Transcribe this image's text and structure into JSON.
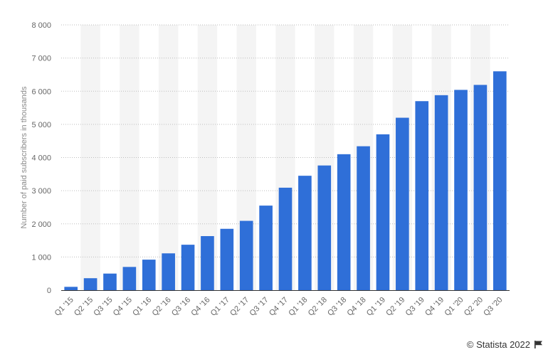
{
  "colors": {
    "bar": "#2f6fd8",
    "band": "#f4f4f4",
    "grid": "#bdbdbd",
    "axis": "#333333"
  },
  "credit": {
    "text": "© Statista 2022",
    "icon": "flag-icon"
  },
  "chart_data": {
    "type": "bar",
    "ylabel": "Number of paid subscribers in thousands",
    "ylim": [
      0,
      8000
    ],
    "yticks": [
      0,
      1000,
      2000,
      3000,
      4000,
      5000,
      6000,
      7000,
      8000
    ],
    "ytick_labels": [
      "0",
      "1 000",
      "2 000",
      "3 000",
      "4 000",
      "5 000",
      "6 000",
      "7 000",
      "8 000"
    ],
    "grid": true,
    "categories": [
      "Q1 '15",
      "Q2 '15",
      "Q3 '15",
      "Q4 '15",
      "Q1 '16",
      "Q2 '16",
      "Q3 '16",
      "Q4 '16",
      "Q1 '17",
      "Q2 '17",
      "Q3 '17",
      "Q4 '17",
      "Q1 '18",
      "Q2 '18",
      "Q3 '18",
      "Q4 '18",
      "Q1 '19",
      "Q2 '19",
      "Q3 '19",
      "Q4 '19",
      "Q1 '20",
      "Q2 '20",
      "Q3 '20"
    ],
    "values": [
      100,
      360,
      500,
      700,
      920,
      1110,
      1370,
      1630,
      1850,
      2090,
      2550,
      3090,
      3450,
      3760,
      4100,
      4340,
      4700,
      5200,
      5700,
      5880,
      6040,
      6190,
      6600
    ]
  }
}
